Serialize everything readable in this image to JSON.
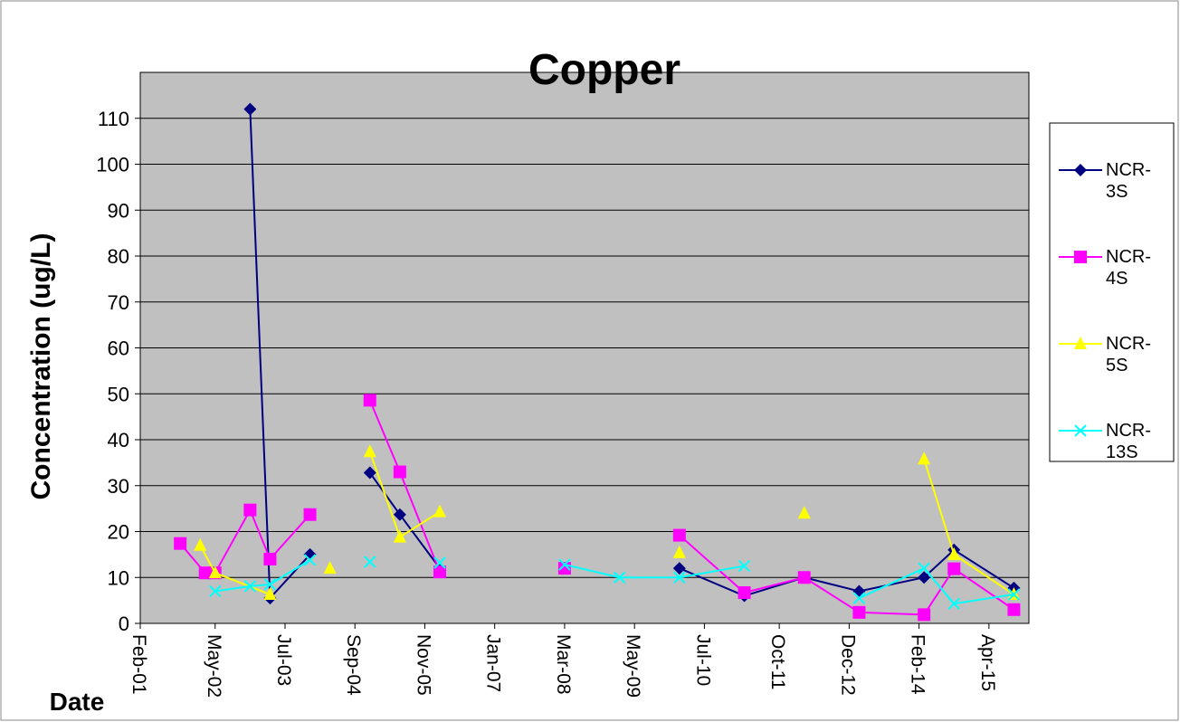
{
  "chart_data": {
    "type": "line",
    "title": "Copper",
    "y_label": "Concentration (ug/L)",
    "x_label": "Date",
    "ylim": [
      0,
      120
    ],
    "yticks": [
      0,
      10,
      20,
      30,
      40,
      50,
      60,
      70,
      80,
      90,
      100,
      110
    ],
    "grid": true,
    "xlim": [
      "2001-02",
      "2015-12"
    ],
    "xticks": [
      {
        "value": "2001-02",
        "label": "Feb-01"
      },
      {
        "value": "2002-05",
        "label": "May-02"
      },
      {
        "value": "2003-07",
        "label": "Jul-03"
      },
      {
        "value": "2004-09",
        "label": "Sep-04"
      },
      {
        "value": "2005-11",
        "label": "Nov-05"
      },
      {
        "value": "2007-01",
        "label": "Jan-07"
      },
      {
        "value": "2008-03",
        "label": "Mar-08"
      },
      {
        "value": "2009-05",
        "label": "May-09"
      },
      {
        "value": "2010-07",
        "label": "Jul-10"
      },
      {
        "value": "2011-10",
        "label": "Oct-11"
      },
      {
        "value": "2012-12",
        "label": "Dec-12"
      },
      {
        "value": "2014-02",
        "label": "Feb-14"
      },
      {
        "value": "2015-04",
        "label": "Apr-15"
      }
    ],
    "legend": "right",
    "series": [
      {
        "name": "NCR-3S",
        "color": "#000080",
        "marker": "diamond",
        "x": [
          "2002-12",
          "2003-04",
          "2003-12",
          null,
          "2004-12",
          "2005-06",
          "2006-02",
          null,
          "2010-02",
          "2011-03",
          "2012-03",
          "2013-02",
          "2014-03",
          "2014-09",
          "2015-09"
        ],
        "values": [
          112,
          5.5,
          15,
          null,
          32.8,
          23.7,
          12,
          null,
          12,
          6,
          10,
          7,
          10,
          16,
          7.7
        ]
      },
      {
        "name": "NCR-4S",
        "color": "#ff00ff",
        "marker": "square",
        "x": [
          "2001-10",
          "2002-03",
          "2002-05",
          "2002-12",
          "2003-04",
          "2003-12",
          null,
          "2004-12",
          "2005-06",
          "2006-02",
          null,
          "2008-03",
          null,
          "2010-02",
          "2011-03",
          "2012-03",
          "2013-02",
          "2014-03",
          "2014-09",
          "2015-09"
        ],
        "values": [
          17.4,
          11,
          11,
          24.7,
          14,
          23.7,
          null,
          48.6,
          33,
          11.2,
          null,
          12,
          null,
          19.2,
          6.7,
          10,
          2.4,
          1.9,
          11.9,
          3
        ]
      },
      {
        "name": "NCR-5S",
        "color": "#ffff00",
        "marker": "triangle",
        "x": [
          "2002-02",
          "2002-05",
          "2003-04",
          null,
          "2004-04",
          null,
          "2004-12",
          "2005-06",
          "2006-02",
          null,
          "2010-02",
          null,
          "2012-03",
          null,
          "2014-03",
          "2014-09",
          "2015-09"
        ],
        "values": [
          17,
          11,
          6.3,
          null,
          12,
          null,
          37.4,
          18.8,
          24.3,
          null,
          15.4,
          null,
          24,
          null,
          35.8,
          15,
          6.3
        ]
      },
      {
        "name": "NCR-13S",
        "color": "#00ffff",
        "marker": "x",
        "x": [
          "2002-05",
          "2002-12",
          "2003-04",
          "2003-12",
          null,
          "2004-12",
          null,
          "2006-02",
          null,
          "2008-03",
          "2009-02",
          "2010-02",
          "2011-03",
          null,
          "2013-02",
          "2014-03",
          "2014-09",
          "2015-09"
        ],
        "values": [
          7,
          8.1,
          8.5,
          13.8,
          null,
          13.4,
          null,
          13.2,
          null,
          12.8,
          10,
          10,
          12.5,
          null,
          5.5,
          12,
          4.3,
          6.3
        ]
      }
    ]
  }
}
